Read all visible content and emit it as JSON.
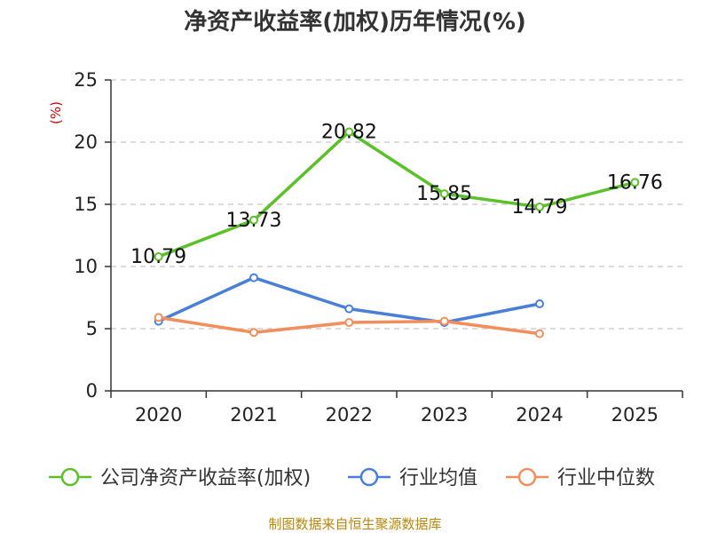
{
  "chart_data": {
    "type": "line",
    "title": "净资产收益率(加权)历年情况(%)",
    "ylabel": "(%)",
    "xlabel": "",
    "categories": [
      "2020",
      "2021",
      "2022",
      "2023",
      "2024",
      "2025"
    ],
    "ylim": [
      0,
      25
    ],
    "yticks": [
      0,
      5,
      10,
      15,
      20,
      25
    ],
    "grid": true,
    "legend_position": "bottom",
    "series": [
      {
        "name": "公司净资产收益率(加权)",
        "color": "#5cc02a",
        "values": [
          10.79,
          13.73,
          20.82,
          15.85,
          14.79,
          16.76
        ],
        "labels": [
          "10.79",
          "13.73",
          "20.82",
          "15.85",
          "14.79",
          "16.76"
        ]
      },
      {
        "name": "行业均值",
        "color": "#4a7fd8",
        "values": [
          5.6,
          9.1,
          6.6,
          5.5,
          7.0,
          null
        ]
      },
      {
        "name": "行业中位数",
        "color": "#f28e5c",
        "values": [
          5.9,
          4.7,
          5.5,
          5.6,
          4.6,
          null
        ]
      }
    ]
  },
  "source": "制图数据来自恒生聚源数据库"
}
